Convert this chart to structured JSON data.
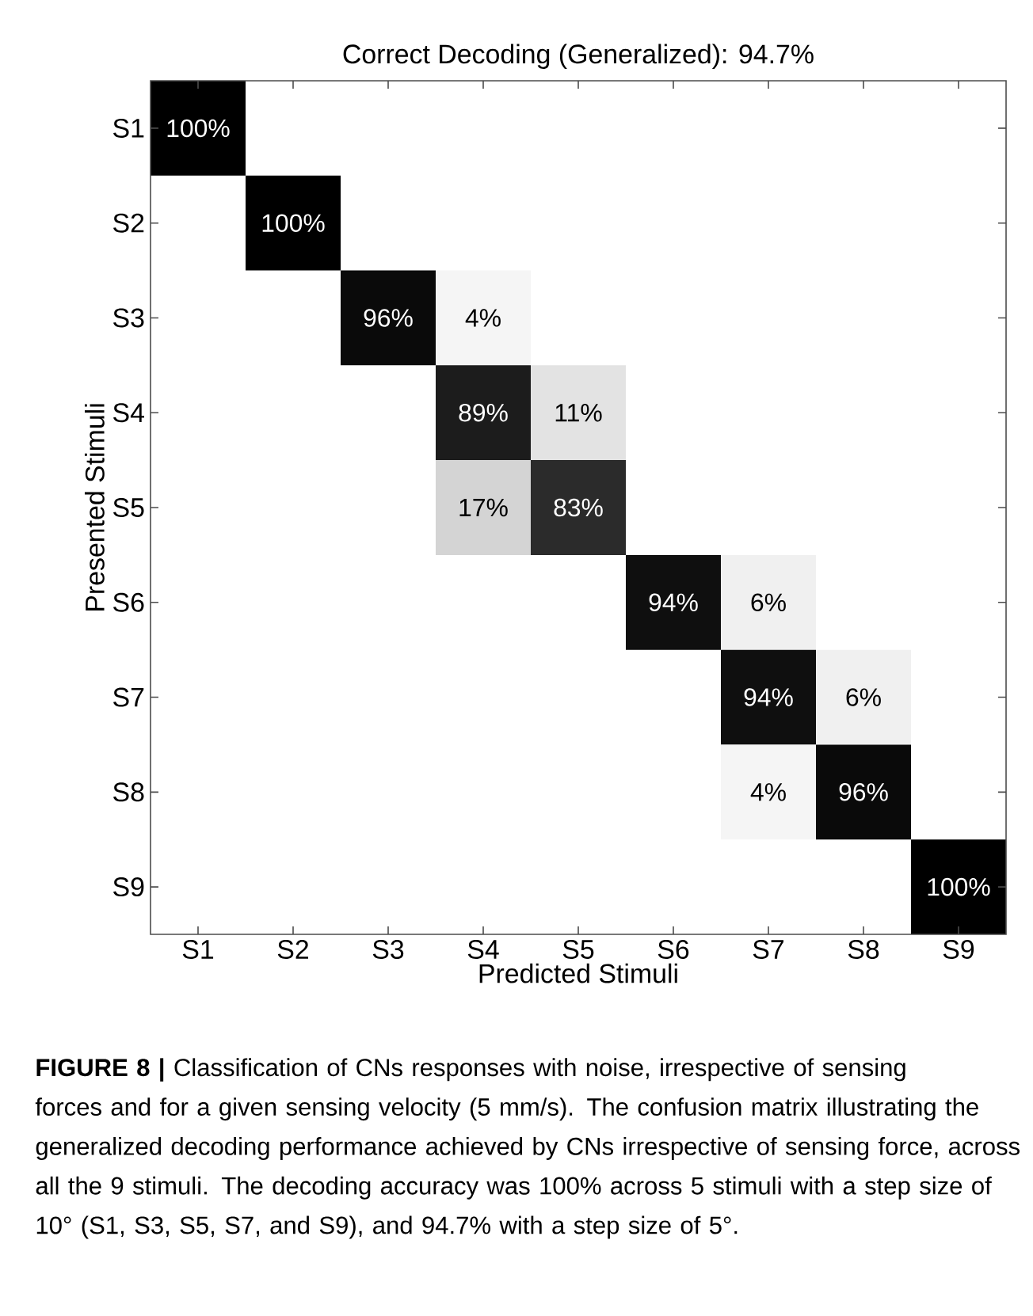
{
  "chart_data": {
    "type": "heatmap",
    "title": "Correct Decoding (Generalized): 94.7%",
    "xlabel": "Predicted Stimuli",
    "ylabel": "Presented Stimuli",
    "categories": [
      "S1",
      "S2",
      "S3",
      "S4",
      "S5",
      "S6",
      "S7",
      "S8",
      "S9"
    ],
    "y_categories": [
      "S1",
      "S2",
      "S3",
      "S4",
      "S5",
      "S6",
      "S7",
      "S8",
      "S9"
    ],
    "cells": [
      [
        100,
        null,
        null,
        null,
        null,
        null,
        null,
        null,
        null
      ],
      [
        null,
        100,
        null,
        null,
        null,
        null,
        null,
        null,
        null
      ],
      [
        null,
        null,
        96,
        4,
        null,
        null,
        null,
        null,
        null
      ],
      [
        null,
        null,
        null,
        89,
        11,
        null,
        null,
        null,
        null
      ],
      [
        null,
        null,
        null,
        17,
        83,
        null,
        null,
        null,
        null
      ],
      [
        null,
        null,
        null,
        null,
        null,
        94,
        6,
        null,
        null
      ],
      [
        null,
        null,
        null,
        null,
        null,
        null,
        94,
        6,
        null
      ],
      [
        null,
        null,
        null,
        null,
        null,
        null,
        4,
        96,
        null
      ],
      [
        null,
        null,
        null,
        null,
        null,
        null,
        null,
        null,
        100
      ]
    ],
    "cell_labels": [
      [
        "100%",
        null,
        null,
        null,
        null,
        null,
        null,
        null,
        null
      ],
      [
        null,
        "100%",
        null,
        null,
        null,
        null,
        null,
        null,
        null
      ],
      [
        null,
        null,
        "96%",
        "4%",
        null,
        null,
        null,
        null,
        null
      ],
      [
        null,
        null,
        null,
        "89%",
        "11%",
        null,
        null,
        null,
        null
      ],
      [
        null,
        null,
        null,
        "17%",
        "83%",
        null,
        null,
        null,
        null
      ],
      [
        null,
        null,
        null,
        null,
        null,
        "94%",
        "6%",
        null,
        null
      ],
      [
        null,
        null,
        null,
        null,
        null,
        null,
        "94%",
        "6%",
        null
      ],
      [
        null,
        null,
        null,
        null,
        null,
        null,
        "4%",
        "96%",
        null
      ],
      [
        null,
        null,
        null,
        null,
        null,
        null,
        null,
        null,
        "100%"
      ]
    ],
    "annotations": [
      "**FIGURE 8 |** Classification of CNs responses with noise, irrespective of sensing forces and for a given sensing velocity (5 mm/s). The confusion matrix illustrating the generalized decoding performance achieved by CNs irrespective of sensing force, across all the 9 stimuli. The decoding accuracy was 100% across 5 stimuli with a step size of 10° (S1, S3, S5, S7, and S9), and 94.7% with a step size of 5°."
    ]
  }
}
